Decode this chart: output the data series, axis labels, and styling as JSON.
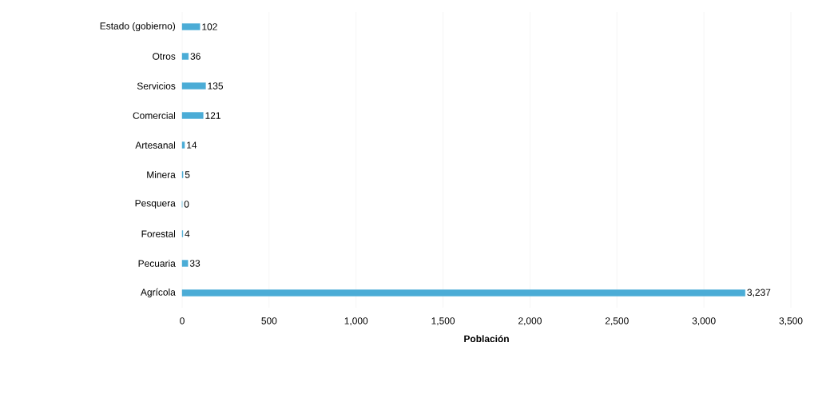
{
  "chart_data": {
    "type": "bar",
    "orientation": "horizontal",
    "xlabel": "Población",
    "categories": [
      "Estado (gobierno)",
      "Otros",
      "Servicios",
      "Comercial",
      "Artesanal",
      "Minera",
      "Pesquera",
      "Forestal",
      "Pecuaria",
      "Agrícola"
    ],
    "values": [
      102,
      36,
      135,
      121,
      14,
      5,
      0,
      4,
      33,
      3237
    ],
    "value_labels": [
      "102",
      "36",
      "135",
      "121",
      "14",
      "5",
      "0",
      "4",
      "33",
      "3,237"
    ],
    "color": "#4bacd6",
    "xlim": [
      0,
      3500
    ],
    "xticks": [
      0,
      500,
      {
        "value": 1000,
        "label": "1,000"
      },
      {
        "value": 1500,
        "label": "1,500"
      },
      {
        "value": 2000,
        "label": "2,000"
      },
      {
        "value": 2500,
        "label": "2,500"
      },
      {
        "value": 3000,
        "label": "3,000"
      },
      {
        "value": 3500,
        "label": "3,500"
      }
    ],
    "grid": "x"
  }
}
